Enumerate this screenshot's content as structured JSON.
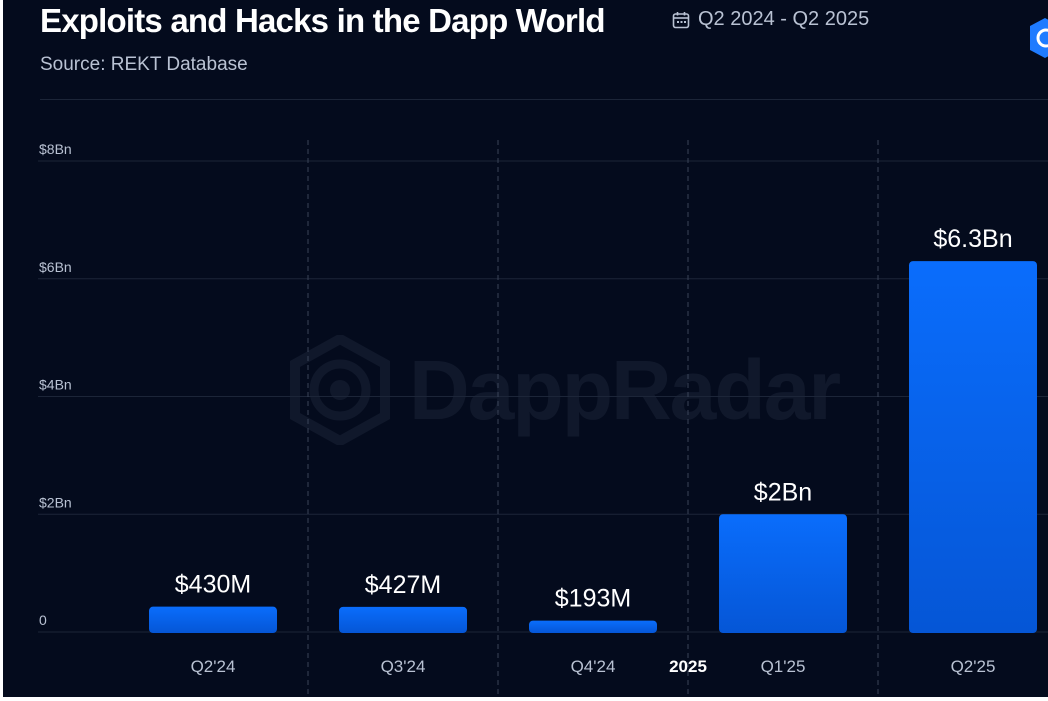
{
  "title": "Exploits and Hacks in the Dapp World",
  "date_range": "Q2 2024 - Q2 2025",
  "source": "Source: REKT Database",
  "watermark": "DappRadar",
  "colors": {
    "background": "#040b1d",
    "bar_top": "#0a6dfc",
    "bar_bottom": "#0556d6",
    "grid": "#1c2538",
    "axis_text": "#b9c2d3"
  },
  "chart_data": {
    "type": "bar",
    "categories": [
      "Q2'24",
      "Q3'24",
      "Q4'24",
      "Q1'25",
      "Q2'25"
    ],
    "values": [
      0.43,
      0.427,
      0.193,
      2.0,
      6.3
    ],
    "value_labels": [
      "$430M",
      "$427M",
      "$193M",
      "$2Bn",
      "$6.3Bn"
    ],
    "yticks": [
      0,
      2,
      4,
      6,
      8
    ],
    "ytick_labels": [
      "0",
      "$2Bn",
      "$4Bn",
      "$6Bn",
      "$8Bn"
    ],
    "year_label": "2025",
    "ylim": [
      0,
      8
    ],
    "grid": true,
    "unit": "billion USD"
  }
}
